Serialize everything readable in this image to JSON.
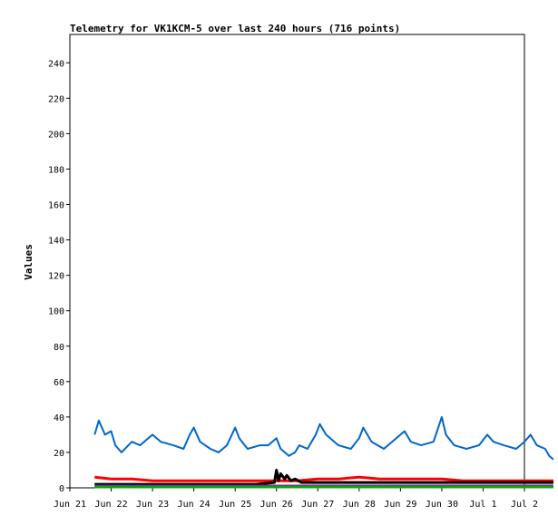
{
  "chart_data": {
    "type": "line",
    "title": "Telemetry for VK1KCM-5 over last 240 hours (716 points)",
    "xlabel": "",
    "ylabel": "Values",
    "x_ticks": [
      "Jun 21",
      "Jun 22",
      "Jun 23",
      "Jun 24",
      "Jun 25",
      "Jun 26",
      "Jun 27",
      "Jun 28",
      "Jun 29",
      "Jun 30",
      "Jul 1",
      "Jul 2"
    ],
    "ylim": [
      0,
      256
    ],
    "y_ticks": [
      0,
      20,
      40,
      60,
      80,
      100,
      120,
      140,
      160,
      180,
      200,
      220,
      240
    ],
    "grid": false,
    "series": [
      {
        "color": "#0066cc",
        "points": [
          [
            0.6,
            30
          ],
          [
            0.7,
            38
          ],
          [
            0.85,
            30
          ],
          [
            1.0,
            32
          ],
          [
            1.1,
            24
          ],
          [
            1.25,
            20
          ],
          [
            1.5,
            26
          ],
          [
            1.7,
            24
          ],
          [
            1.9,
            28
          ],
          [
            2.0,
            30
          ],
          [
            2.2,
            26
          ],
          [
            2.5,
            24
          ],
          [
            2.75,
            22
          ],
          [
            2.9,
            30
          ],
          [
            3.0,
            34
          ],
          [
            3.15,
            26
          ],
          [
            3.4,
            22
          ],
          [
            3.6,
            20
          ],
          [
            3.8,
            24
          ],
          [
            4.0,
            34
          ],
          [
            4.1,
            28
          ],
          [
            4.3,
            22
          ],
          [
            4.6,
            24
          ],
          [
            4.8,
            24
          ],
          [
            5.0,
            28
          ],
          [
            5.1,
            22
          ],
          [
            5.3,
            18
          ],
          [
            5.45,
            20
          ],
          [
            5.55,
            24
          ],
          [
            5.75,
            22
          ],
          [
            5.95,
            30
          ],
          [
            6.05,
            36
          ],
          [
            6.2,
            30
          ],
          [
            6.5,
            24
          ],
          [
            6.8,
            22
          ],
          [
            7.0,
            28
          ],
          [
            7.1,
            34
          ],
          [
            7.3,
            26
          ],
          [
            7.6,
            22
          ],
          [
            7.9,
            28
          ],
          [
            8.1,
            32
          ],
          [
            8.25,
            26
          ],
          [
            8.5,
            24
          ],
          [
            8.8,
            26
          ],
          [
            9.0,
            40
          ],
          [
            9.1,
            30
          ],
          [
            9.3,
            24
          ],
          [
            9.6,
            22
          ],
          [
            9.9,
            24
          ],
          [
            10.1,
            30
          ],
          [
            10.25,
            26
          ],
          [
            10.5,
            24
          ],
          [
            10.8,
            22
          ],
          [
            11.0,
            26
          ],
          [
            11.15,
            30
          ],
          [
            11.3,
            24
          ],
          [
            11.5,
            22
          ],
          [
            11.6,
            18
          ],
          [
            11.7,
            16
          ]
        ]
      },
      {
        "color": "#ff0000",
        "points": [
          [
            0.6,
            6
          ],
          [
            1.0,
            5
          ],
          [
            1.5,
            5
          ],
          [
            2.0,
            4
          ],
          [
            2.5,
            4
          ],
          [
            3.0,
            4
          ],
          [
            3.5,
            4
          ],
          [
            4.0,
            4
          ],
          [
            4.5,
            4
          ],
          [
            5.0,
            4
          ],
          [
            5.5,
            4
          ],
          [
            6.0,
            5
          ],
          [
            6.5,
            5
          ],
          [
            7.0,
            6
          ],
          [
            7.5,
            5
          ],
          [
            8.0,
            5
          ],
          [
            8.5,
            5
          ],
          [
            9.0,
            5
          ],
          [
            9.5,
            4
          ],
          [
            10.0,
            4
          ],
          [
            10.5,
            4
          ],
          [
            11.0,
            4
          ],
          [
            11.5,
            4
          ],
          [
            11.7,
            4
          ]
        ]
      },
      {
        "color": "#000000",
        "points": [
          [
            0.6,
            2
          ],
          [
            1.5,
            2
          ],
          [
            2.5,
            2
          ],
          [
            3.5,
            2
          ],
          [
            4.5,
            2
          ],
          [
            4.95,
            3
          ],
          [
            5.0,
            10
          ],
          [
            5.05,
            4
          ],
          [
            5.1,
            8
          ],
          [
            5.2,
            5
          ],
          [
            5.25,
            7
          ],
          [
            5.35,
            4
          ],
          [
            5.45,
            5
          ],
          [
            5.6,
            3
          ],
          [
            6.0,
            3
          ],
          [
            6.5,
            3
          ],
          [
            7.5,
            3
          ],
          [
            8.5,
            3
          ],
          [
            9.5,
            3
          ],
          [
            10.5,
            3
          ],
          [
            11.7,
            3
          ]
        ]
      },
      {
        "color": "#9900cc",
        "points": [
          [
            0.6,
            1
          ],
          [
            11.7,
            1
          ]
        ]
      },
      {
        "color": "#00aa00",
        "points": [
          [
            0.6,
            0.5
          ],
          [
            11.7,
            0.5
          ]
        ]
      }
    ]
  }
}
